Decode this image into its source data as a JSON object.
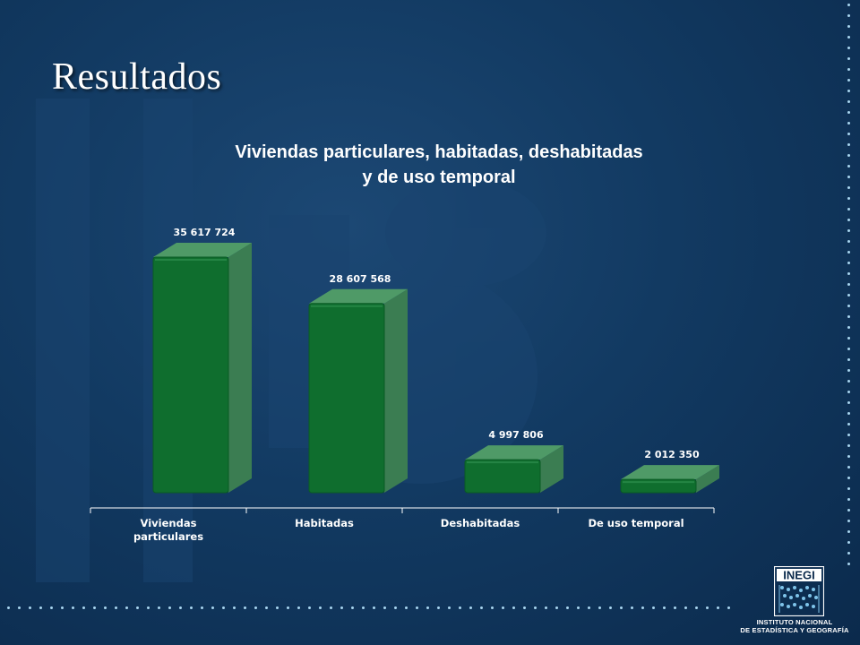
{
  "slide": {
    "title": "Resultados"
  },
  "chart_data": {
    "type": "bar",
    "title_lines": [
      "Viviendas particulares, habitadas, deshabitadas",
      "y de uso temporal"
    ],
    "categories": [
      [
        "Viviendas",
        "particulares"
      ],
      [
        "Habitadas"
      ],
      [
        "Deshabitadas"
      ],
      [
        "De uso temporal"
      ]
    ],
    "values": [
      35617724,
      28607568,
      4997806,
      2012350
    ],
    "value_labels": [
      "35 617 724",
      "28 607 568",
      "4 997 806",
      "2 012 350"
    ],
    "xlabel": "",
    "ylabel": "",
    "ylim": [
      0,
      35617724
    ],
    "grid": false,
    "legend": "none",
    "bar_color": "#0f6e2e"
  },
  "logo": {
    "name": "INEGI",
    "caption_lines": [
      "INSTITUTO NACIONAL",
      "DE ESTADÍSTICA Y GEOGRAFÍA"
    ]
  },
  "colors": {
    "background": "#123a62",
    "dots": "#a9d6f0",
    "bar_front": "#0f6e2e",
    "bar_side": "#3b7d52",
    "bar_top": "#4f9a67"
  }
}
